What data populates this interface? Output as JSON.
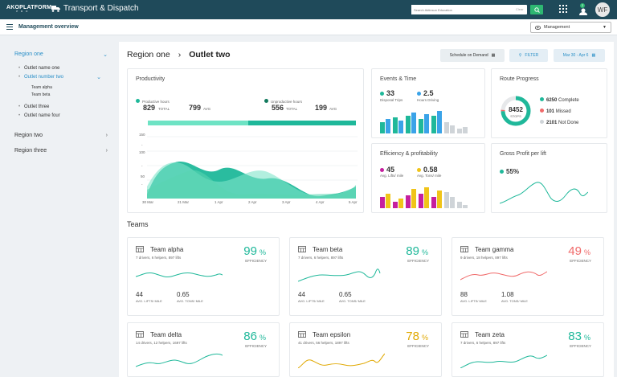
{
  "topbar": {
    "logo": "AKOPLATFORM",
    "logo_sub": "P R O",
    "app_title": "Transport & Dispatch",
    "search_placeholder": "Search Aktinsun Education",
    "search_clear": "Clear",
    "avatar_initials": "WF",
    "notification_count": "2"
  },
  "subbar": {
    "title": "Management overview",
    "dropdown": "Management"
  },
  "sidebar": {
    "region_one": "Region one",
    "outlets": [
      "Outlet name one",
      "Outlet number two",
      "Outlet three",
      "Outlet name four"
    ],
    "teams": [
      "Team alpha",
      "Team beta"
    ],
    "region_two": "Region two",
    "region_three": "Region three"
  },
  "header": {
    "crumb1": "Region one",
    "crumb2": "Outlet two",
    "btn_schedule": "Schedule on Demand",
    "btn_filter": "FILTER",
    "btn_date": "Mar 30 - Apr 6"
  },
  "productivity": {
    "title": "Productivity",
    "prod_label": "Productive hours",
    "prod_total": "829",
    "prod_total_label": "TOTAL",
    "prod_avg": "799",
    "prod_avg_label": "AVG",
    "unprod_label": "Unproductive hours",
    "unprod_total": "556",
    "unprod_total_label": "TOTAL",
    "unprod_avg": "199",
    "unprod_avg_label": "AVG",
    "y_ticks": [
      "150",
      "100",
      "50",
      "-"
    ],
    "x_ticks": [
      "30 Mar",
      "21 Mar",
      "1 Apr",
      "2 Apr",
      "3 Apr",
      "4 Apr",
      "5 Apr"
    ]
  },
  "events": {
    "title": "Events & Time",
    "disposal": "33",
    "disposal_label": "Disposal Trips",
    "hours": "2.5",
    "hours_label": "Hours Driving"
  },
  "efficiency": {
    "title": "Efficiency & profitability",
    "lifts": "45",
    "lifts_label": "Avg. Lifts/ mile",
    "tons": "0.58",
    "tons_label": "Avg. Tons/ mile"
  },
  "route": {
    "title": "Route Progress",
    "stops": "8452",
    "stops_label": "STOPS",
    "complete": "6250",
    "complete_label": "Complete",
    "missed": "101",
    "missed_label": "Missed",
    "notdone": "2101",
    "notdone_label": "Not Done"
  },
  "gross": {
    "title": "Gross Profit per lift",
    "value": "55%"
  },
  "teams_title": "Teams",
  "teams": [
    {
      "name": "Team alpha",
      "sub": "7 drivers, 6 helpers, 897 lifts",
      "eff": "99",
      "lifts": "44",
      "tons": "0.65"
    },
    {
      "name": "Team beta",
      "sub": "7 drivers, 6 helpers, 897 lifts",
      "eff": "89",
      "lifts": "44",
      "tons": "0.65"
    },
    {
      "name": "Team gamma",
      "sub": "9 drivers, 18 helpers, 897 lifts",
      "eff": "49",
      "lifts": "88",
      "tons": "1.08"
    },
    {
      "name": "Team delta",
      "sub": "14 drivers, 12 helpers, 1697 lifts",
      "eff": "86"
    },
    {
      "name": "Team epsilon",
      "sub": "41 drivers, 56 helpers, 1897 lifts",
      "eff": "78"
    },
    {
      "name": "Team zeta",
      "sub": "7 drivers, 6 helpers, 897 lifts",
      "eff": "83"
    }
  ],
  "labels": {
    "pct": "%",
    "efficiency": "EFFICIENCY",
    "avg_lifts": "AVG. LIFTS/ MILE",
    "avg_tons": "AVG. TONS/ MILE"
  },
  "colors": {
    "teal": "#1fb89a",
    "blue": "#3aa3e8",
    "grey": "#cfd4d8",
    "magenta": "#c51f9f",
    "yellow": "#f0c419",
    "red": "#f06a6a",
    "amber": "#e0a800"
  }
}
